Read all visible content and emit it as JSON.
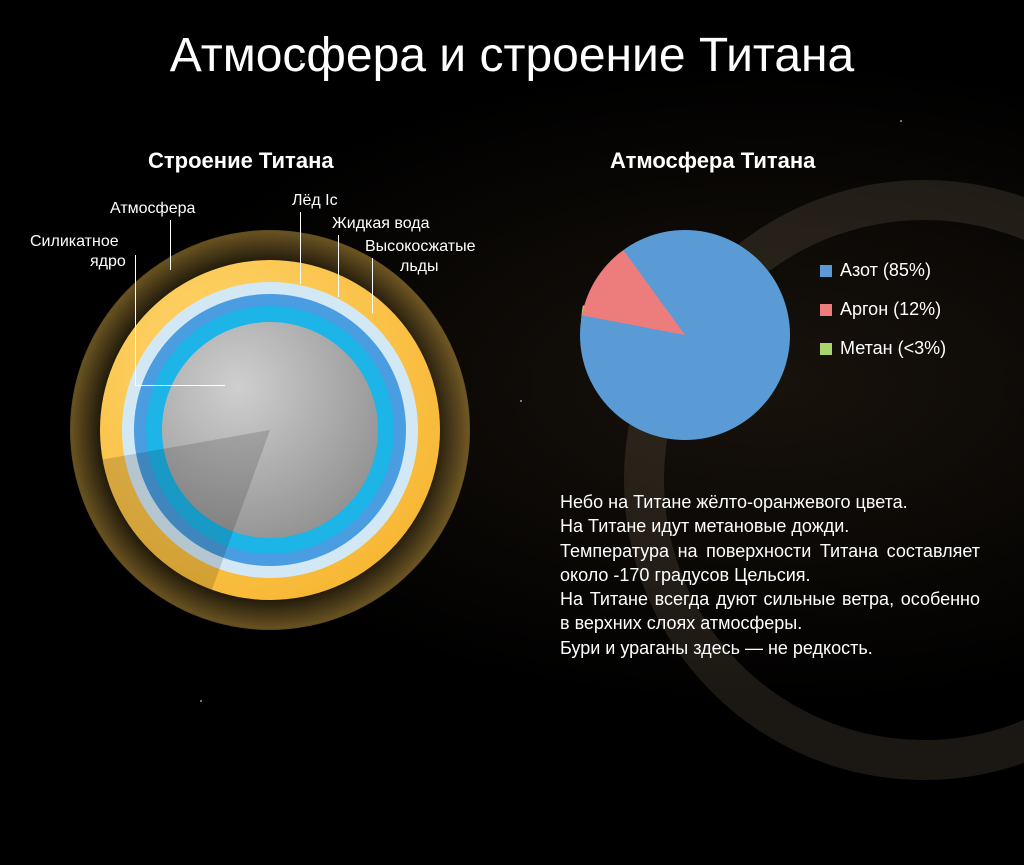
{
  "title": "Атмосфера и строение Титана",
  "title_fontsize": 48,
  "title_color": "#ffffff",
  "background": "#000000",
  "structure": {
    "subtitle": "Строение Титана",
    "subtitle_fontsize": 22,
    "layers": [
      {
        "name": "Атмосфера",
        "color_outer": "#f7b733",
        "color_inner": "#ffd66e",
        "radius": 170
      },
      {
        "name": "Лёд Iс",
        "color": "#d3e8f5",
        "radius": 148
      },
      {
        "name": "Жидкая вода",
        "color": "#4a9de0",
        "radius": 136
      },
      {
        "name": "Высокосжатые льды",
        "color": "#1db4e8",
        "radius": 124
      },
      {
        "name": "Силикатное ядро",
        "color_top": "#cfcfcf",
        "color_bottom": "#8a8a8a",
        "radius": 108
      }
    ],
    "label_fontsize": 16,
    "label_color": "#ffffff",
    "line_color": "#ffffff"
  },
  "pie": {
    "subtitle": "Атмосфера Титана",
    "subtitle_fontsize": 22,
    "type": "pie",
    "slices": [
      {
        "label": "Азот (85%)",
        "value": 85,
        "color": "#5b9bd5"
      },
      {
        "label": "Аргон (12%)",
        "value": 12,
        "color": "#ed7d7d"
      },
      {
        "label": "Метан (<3%)",
        "value": 3,
        "color": "#a8d66a"
      }
    ],
    "legend_fontsize": 18,
    "legend_color": "#ffffff",
    "start_angle": -90,
    "exploded_index": 2,
    "explode_distance": 10
  },
  "body": {
    "lines": [
      "Небо на Титане жёлто-оранжевого цвета.",
      "На Титане идут метановые дожди.",
      "Температура на поверхности Титана составляет около -170 градусов Цельсия.",
      "На Титане всегда дуют сильные ветра, особенно в верхних слоях атмосферы.",
      "Бури и ураганы здесь — не редкость."
    ],
    "fontsize": 18,
    "color": "#ffffff"
  }
}
